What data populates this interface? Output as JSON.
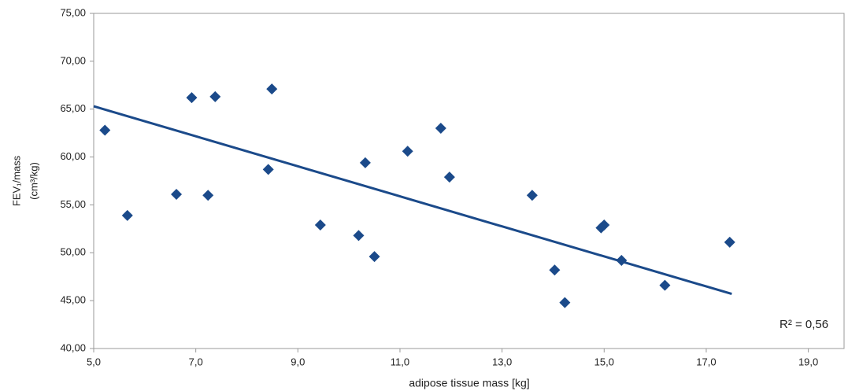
{
  "chart_data": {
    "type": "scatter",
    "x_label": "adipose tissue mass [kg]",
    "y_label": "FEV₁/mass",
    "y_label_unit": "(cm³/kg)",
    "annotation": "R² = 0,56",
    "color": "#1b4a8a",
    "x": [
      5.22,
      5.66,
      6.62,
      6.92,
      7.24,
      7.38,
      8.42,
      8.49,
      9.44,
      10.19,
      10.32,
      10.5,
      11.15,
      11.8,
      11.97,
      13.59,
      14.03,
      14.23,
      14.94,
      15.0,
      15.34,
      16.19,
      17.46
    ],
    "values": [
      62.8,
      53.9,
      56.1,
      66.2,
      56.0,
      66.3,
      58.7,
      67.1,
      52.9,
      51.8,
      59.4,
      49.6,
      60.6,
      63.0,
      57.9,
      56.0,
      48.2,
      44.8,
      52.6,
      52.9,
      49.2,
      46.6,
      51.1
    ],
    "trendline": {
      "x": [
        5.0,
        17.5
      ],
      "values": [
        65.3,
        45.7
      ]
    },
    "xlim": [
      5.0,
      19.7
    ],
    "ylim": [
      40,
      75
    ],
    "xticks": [
      {
        "value": 5,
        "label": "5,0"
      },
      {
        "value": 7,
        "label": "7,0"
      },
      {
        "value": 9,
        "label": "9,0"
      },
      {
        "value": 11,
        "label": "11,0"
      },
      {
        "value": 13,
        "label": "13,0"
      },
      {
        "value": 15,
        "label": "15,0"
      },
      {
        "value": 17,
        "label": "17,0"
      },
      {
        "value": 19,
        "label": "19,0"
      }
    ],
    "yticks": [
      {
        "value": 40,
        "label": "40,00"
      },
      {
        "value": 45,
        "label": "45,00"
      },
      {
        "value": 50,
        "label": "50,00"
      },
      {
        "value": 55,
        "label": "55,00"
      },
      {
        "value": 60,
        "label": "60,00"
      },
      {
        "value": 65,
        "label": "65,00"
      },
      {
        "value": 70,
        "label": "70,00"
      },
      {
        "value": 75,
        "label": "75,00"
      }
    ],
    "grid": false
  }
}
